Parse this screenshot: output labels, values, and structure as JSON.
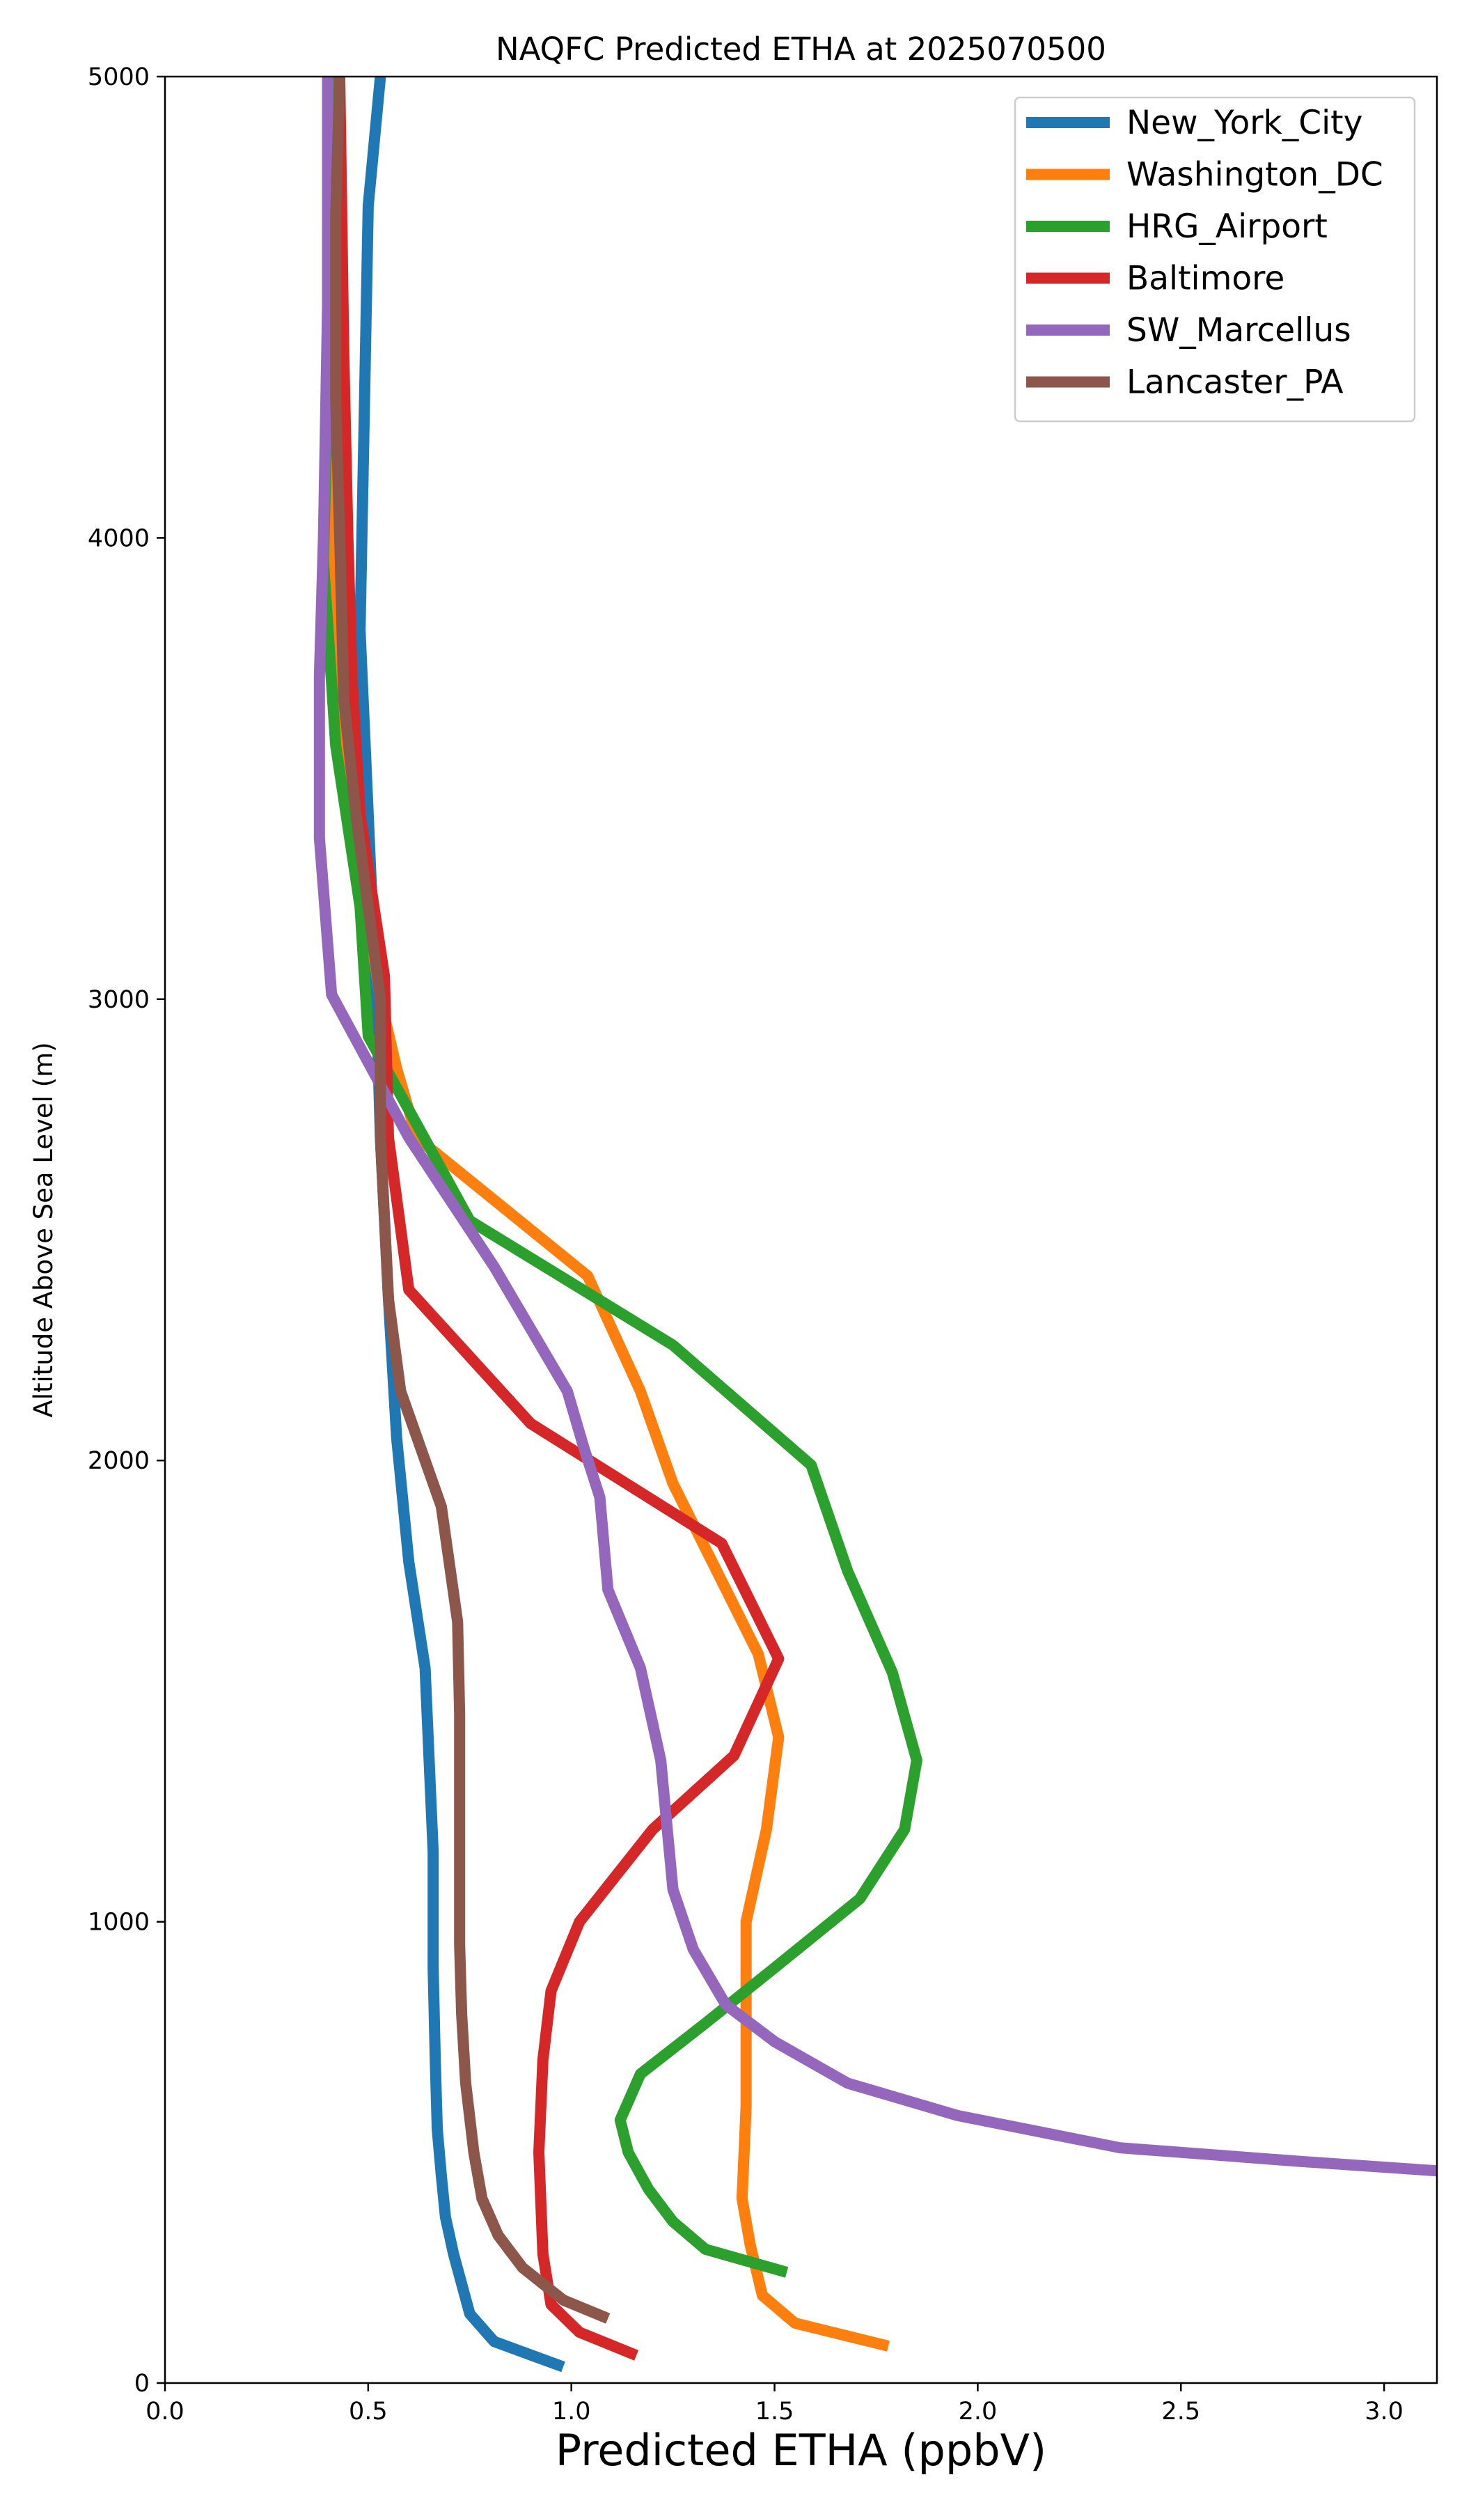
{
  "chart_data": {
    "type": "line",
    "title": "NAQFC Predicted ETHA at 2025070500",
    "xlabel": "Predicted ETHA (ppbV)",
    "ylabel": "Altitude Above Sea Level (m)",
    "xlim": [
      0,
      3.13
    ],
    "ylim": [
      0,
      5000
    ],
    "xticks": [
      "0.0",
      "0.5",
      "1.0",
      "1.5",
      "2.0",
      "2.5",
      "3.0"
    ],
    "xtick_values": [
      0,
      0.5,
      1.0,
      1.5,
      2.0,
      2.5,
      3.0
    ],
    "yticks": [
      "0",
      "1000",
      "2000",
      "3000",
      "4000",
      "5000"
    ],
    "ytick_values": [
      0,
      1000,
      2000,
      3000,
      4000,
      5000
    ],
    "grid": false,
    "legend_position": "top-right",
    "series": [
      {
        "name": "New_York_City",
        "color": "#1f77b4",
        "points": [
          [
            0.98,
            35
          ],
          [
            0.81,
            90
          ],
          [
            0.75,
            150
          ],
          [
            0.71,
            280
          ],
          [
            0.69,
            360
          ],
          [
            0.68,
            450
          ],
          [
            0.67,
            550
          ],
          [
            0.665,
            700
          ],
          [
            0.66,
            900
          ],
          [
            0.66,
            1150
          ],
          [
            0.65,
            1350
          ],
          [
            0.64,
            1550
          ],
          [
            0.6,
            1780
          ],
          [
            0.57,
            2050
          ],
          [
            0.55,
            2350
          ],
          [
            0.53,
            2700
          ],
          [
            0.52,
            3000
          ],
          [
            0.5,
            3400
          ],
          [
            0.48,
            3800
          ],
          [
            0.49,
            4250
          ],
          [
            0.5,
            4720
          ],
          [
            0.53,
            5000
          ]
        ]
      },
      {
        "name": "Washington_DC",
        "color": "#ff7f0e",
        "points": [
          [
            1.78,
            80
          ],
          [
            1.55,
            130
          ],
          [
            1.47,
            190
          ],
          [
            1.44,
            300
          ],
          [
            1.42,
            400
          ],
          [
            1.43,
            600
          ],
          [
            1.43,
            1000
          ],
          [
            1.48,
            1200
          ],
          [
            1.51,
            1400
          ],
          [
            1.46,
            1580
          ],
          [
            1.25,
            1950
          ],
          [
            1.17,
            2150
          ],
          [
            1.04,
            2400
          ],
          [
            0.62,
            2700
          ],
          [
            0.57,
            2850
          ],
          [
            0.53,
            3000
          ],
          [
            0.48,
            3300
          ],
          [
            0.43,
            3600
          ],
          [
            0.41,
            3900
          ],
          [
            0.4,
            4300
          ],
          [
            0.42,
            4700
          ],
          [
            0.43,
            5000
          ]
        ]
      },
      {
        "name": "HRG_Airport",
        "color": "#2ca02c",
        "points": [
          [
            1.53,
            240
          ],
          [
            1.33,
            290
          ],
          [
            1.25,
            350
          ],
          [
            1.19,
            420
          ],
          [
            1.14,
            500
          ],
          [
            1.12,
            570
          ],
          [
            1.17,
            670
          ],
          [
            1.33,
            780
          ],
          [
            1.5,
            900
          ],
          [
            1.71,
            1050
          ],
          [
            1.82,
            1200
          ],
          [
            1.85,
            1350
          ],
          [
            1.79,
            1540
          ],
          [
            1.68,
            1760
          ],
          [
            1.59,
            1990
          ],
          [
            1.25,
            2250
          ],
          [
            0.75,
            2520
          ],
          [
            0.5,
            2920
          ],
          [
            0.48,
            3200
          ],
          [
            0.42,
            3550
          ],
          [
            0.39,
            3950
          ],
          [
            0.4,
            4300
          ],
          [
            0.41,
            4650
          ],
          [
            0.42,
            5000
          ]
        ]
      },
      {
        "name": "Baltimore",
        "color": "#d62728",
        "points": [
          [
            1.16,
            60
          ],
          [
            1.02,
            110
          ],
          [
            0.95,
            170
          ],
          [
            0.93,
            280
          ],
          [
            0.92,
            500
          ],
          [
            0.93,
            700
          ],
          [
            0.95,
            850
          ],
          [
            1.02,
            1000
          ],
          [
            1.2,
            1200
          ],
          [
            1.4,
            1360
          ],
          [
            1.51,
            1570
          ],
          [
            1.37,
            1820
          ],
          [
            0.9,
            2080
          ],
          [
            0.6,
            2370
          ],
          [
            0.55,
            2700
          ],
          [
            0.54,
            3050
          ],
          [
            0.48,
            3400
          ],
          [
            0.46,
            3700
          ],
          [
            0.45,
            4000
          ],
          [
            0.44,
            4400
          ],
          [
            0.43,
            5000
          ]
        ]
      },
      {
        "name": "SW_Marcellus",
        "color": "#9467bd",
        "points": [
          [
            3.13,
            460
          ],
          [
            2.8,
            480
          ],
          [
            2.35,
            510
          ],
          [
            1.95,
            580
          ],
          [
            1.68,
            650
          ],
          [
            1.5,
            740
          ],
          [
            1.38,
            820
          ],
          [
            1.3,
            940
          ],
          [
            1.25,
            1070
          ],
          [
            1.22,
            1350
          ],
          [
            1.17,
            1550
          ],
          [
            1.09,
            1720
          ],
          [
            1.07,
            1920
          ],
          [
            1.03,
            2030
          ],
          [
            0.99,
            2150
          ],
          [
            0.81,
            2420
          ],
          [
            0.6,
            2700
          ],
          [
            0.41,
            3010
          ],
          [
            0.38,
            3350
          ],
          [
            0.38,
            3700
          ],
          [
            0.39,
            4000
          ],
          [
            0.4,
            4500
          ],
          [
            0.4,
            5000
          ]
        ]
      },
      {
        "name": "Lancaster_PA",
        "color": "#8c564b",
        "points": [
          [
            1.09,
            140
          ],
          [
            0.98,
            180
          ],
          [
            0.88,
            250
          ],
          [
            0.82,
            320
          ],
          [
            0.78,
            400
          ],
          [
            0.76,
            500
          ],
          [
            0.74,
            650
          ],
          [
            0.73,
            800
          ],
          [
            0.725,
            950
          ],
          [
            0.725,
            1450
          ],
          [
            0.72,
            1650
          ],
          [
            0.68,
            1900
          ],
          [
            0.58,
            2150
          ],
          [
            0.55,
            2350
          ],
          [
            0.53,
            2700
          ],
          [
            0.53,
            3000
          ],
          [
            0.47,
            3400
          ],
          [
            0.44,
            3650
          ],
          [
            0.43,
            4000
          ],
          [
            0.42,
            4300
          ],
          [
            0.42,
            4700
          ],
          [
            0.43,
            5000
          ]
        ]
      }
    ]
  }
}
